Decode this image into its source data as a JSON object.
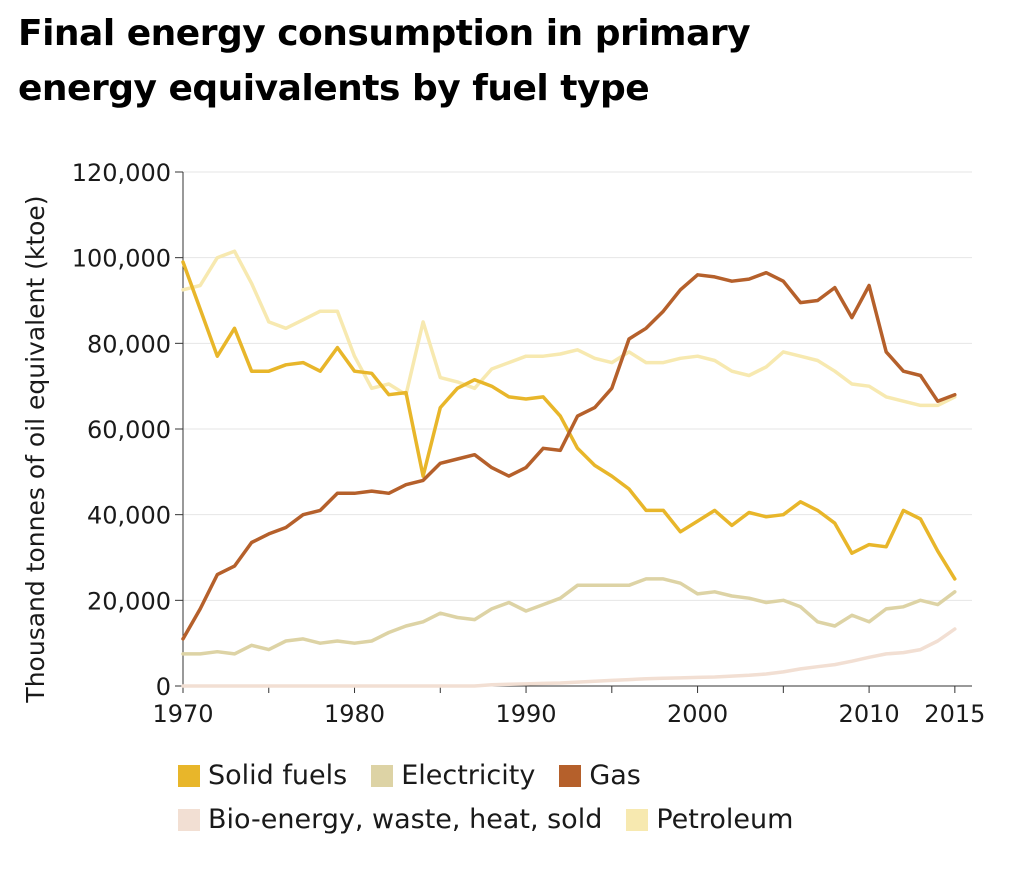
{
  "title_lines": [
    "Final energy consumption in primary",
    "energy equivalents by fuel type"
  ],
  "chart_data": {
    "type": "line",
    "title": "Final energy consumption in primary energy equivalents by fuel type",
    "ylabel": "Thousand tonnes of oil equivalent (ktoe)",
    "xlabel": "",
    "xlim": [
      1970,
      2016
    ],
    "ylim": [
      0,
      120000
    ],
    "x_ticks": [
      1970,
      1980,
      1990,
      2000,
      2010,
      2015
    ],
    "x_tick_labels": [
      "1970",
      "1980",
      "1990",
      "2000",
      "2010",
      "2015"
    ],
    "y_ticks": [
      0,
      20000,
      40000,
      60000,
      80000,
      100000,
      120000
    ],
    "y_tick_labels": [
      "0",
      "20,000",
      "40,000",
      "60,000",
      "80,000",
      "100,000",
      "120,000"
    ],
    "grid": "horizontal",
    "legend_position": "bottom",
    "x": [
      1970,
      1971,
      1972,
      1973,
      1974,
      1975,
      1976,
      1977,
      1978,
      1979,
      1980,
      1981,
      1982,
      1983,
      1984,
      1985,
      1986,
      1987,
      1988,
      1989,
      1990,
      1991,
      1992,
      1993,
      1994,
      1995,
      1996,
      1997,
      1998,
      1999,
      2000,
      2001,
      2002,
      2003,
      2004,
      2005,
      2006,
      2007,
      2008,
      2009,
      2010,
      2011,
      2012,
      2013,
      2014,
      2015
    ],
    "series": [
      {
        "name": "Petroleum",
        "color": "#f7e9b0",
        "values": [
          92500,
          93500,
          100000,
          101500,
          94000,
          85000,
          83500,
          85500,
          87500,
          87500,
          77000,
          69500,
          70500,
          68000,
          85000,
          72000,
          71000,
          69500,
          74000,
          75500,
          77000,
          77000,
          77500,
          78500,
          76500,
          75500,
          78000,
          75500,
          75500,
          76500,
          77000,
          76000,
          73500,
          72500,
          74500,
          78000,
          77000,
          76000,
          73500,
          70500,
          70000,
          67500,
          66500,
          65500,
          65500,
          67500
        ]
      },
      {
        "name": "Electricity",
        "color": "#ddd3a5",
        "values": [
          7500,
          7500,
          8000,
          7500,
          9500,
          8500,
          10500,
          11000,
          10000,
          10500,
          10000,
          10500,
          12500,
          14000,
          15000,
          17000,
          16000,
          15500,
          18000,
          19500,
          17500,
          19000,
          20500,
          23500,
          23500,
          23500,
          23500,
          25000,
          25000,
          24000,
          21500,
          22000,
          21000,
          20500,
          19500,
          20000,
          18500,
          15000,
          14000,
          16500,
          15000,
          18000,
          18500,
          20000,
          19000,
          22000
        ]
      },
      {
        "name": "Solid fuels",
        "color": "#e8b62a",
        "values": [
          99000,
          88000,
          77000,
          83500,
          73500,
          73500,
          75000,
          75500,
          73500,
          79000,
          73500,
          73000,
          68000,
          68500,
          49000,
          65000,
          69500,
          71500,
          70000,
          67500,
          67000,
          67500,
          63000,
          55500,
          51500,
          49000,
          46000,
          41000,
          41000,
          36000,
          38500,
          41000,
          37500,
          40500,
          39500,
          40000,
          43000,
          41000,
          38000,
          31000,
          33000,
          32500,
          41000,
          39000,
          31500,
          25000
        ]
      },
      {
        "name": "Bio-energy, waste, heat, sold",
        "color": "#f2dfd3",
        "values": [
          0,
          0,
          0,
          0,
          0,
          0,
          0,
          0,
          0,
          0,
          0,
          0,
          0,
          0,
          0,
          0,
          0,
          0,
          300,
          400,
          500,
          600,
          700,
          900,
          1100,
          1300,
          1500,
          1700,
          1800,
          1900,
          2000,
          2100,
          2300,
          2500,
          2800,
          3300,
          4000,
          4500,
          5000,
          5800,
          6700,
          7500,
          7800,
          8500,
          10500,
          13300
        ]
      },
      {
        "name": "Gas",
        "color": "#b5602b",
        "values": [
          11000,
          18000,
          26000,
          28000,
          33500,
          35500,
          37000,
          40000,
          41000,
          45000,
          45000,
          45500,
          45000,
          47000,
          48000,
          52000,
          53000,
          54000,
          51000,
          49000,
          51000,
          55500,
          55000,
          63000,
          65000,
          69500,
          81000,
          83500,
          87500,
          92500,
          96000,
          95500,
          94500,
          95000,
          96500,
          94500,
          89500,
          90000,
          93000,
          86000,
          93500,
          78000,
          73500,
          72500,
          66500,
          68000
        ]
      }
    ]
  },
  "legend": {
    "row1": [
      {
        "label": "Solid fuels",
        "color": "#e8b62a"
      },
      {
        "label": "Electricity",
        "color": "#ddd3a5"
      },
      {
        "label": "Gas",
        "color": "#b5602b"
      }
    ],
    "row2": [
      {
        "label": "Bio-energy, waste, heat, sold",
        "color": "#f2dfd3"
      },
      {
        "label": "Petroleum",
        "color": "#f7e9b0"
      }
    ]
  }
}
